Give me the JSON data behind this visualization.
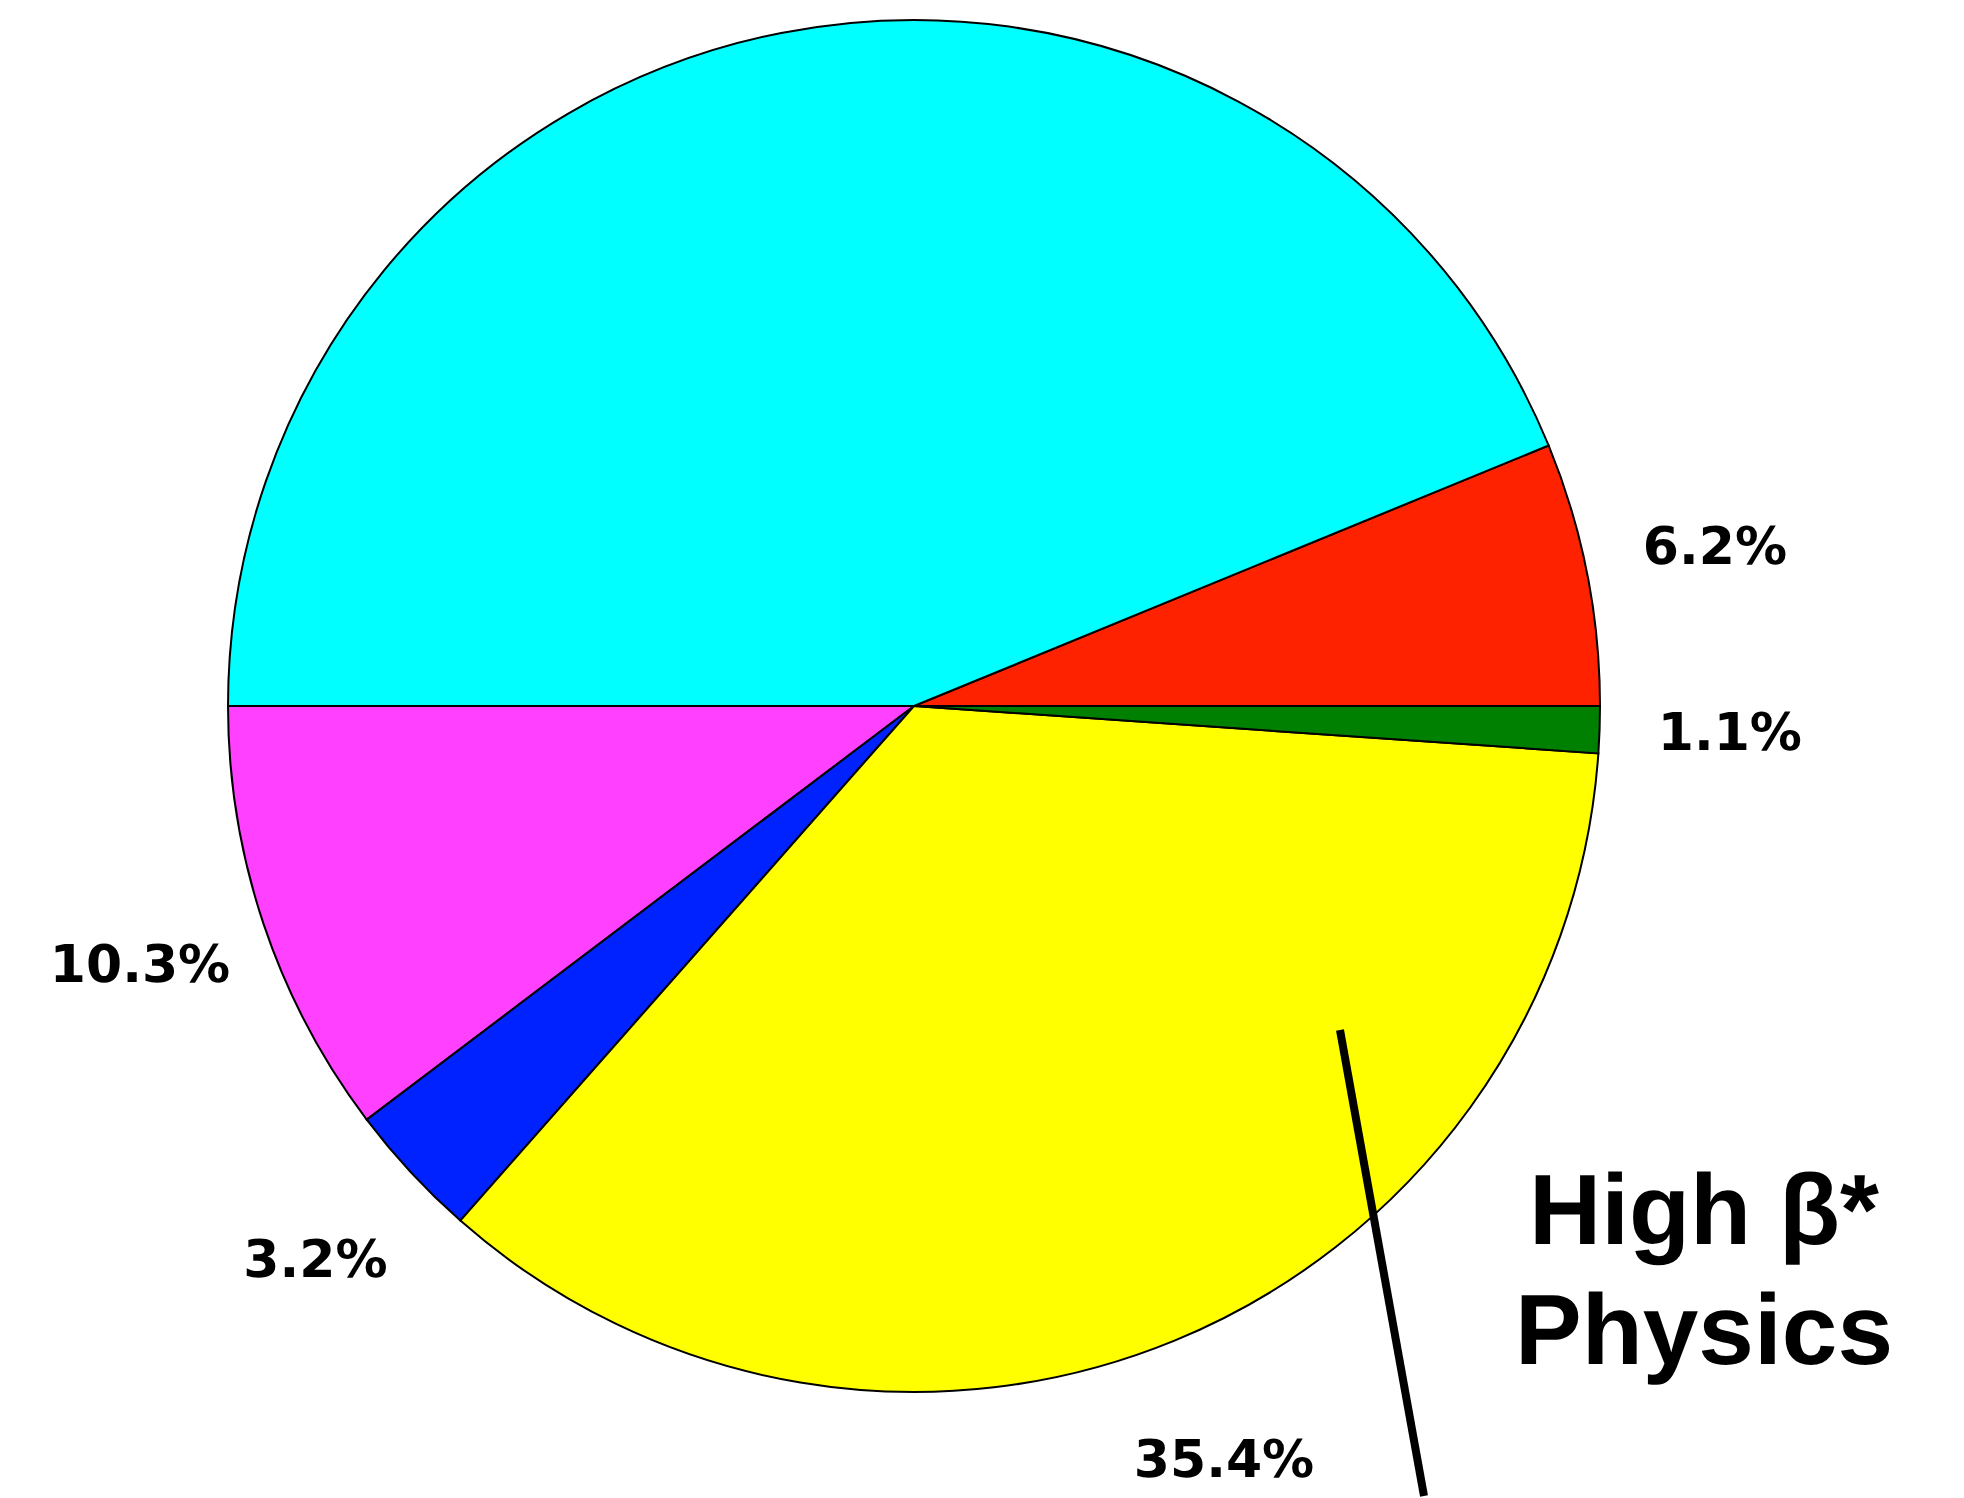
{
  "chart_data": {
    "type": "pie",
    "categories": [
      null,
      null,
      null,
      null,
      null,
      null
    ],
    "values": [
      6.2,
      43.8,
      10.3,
      3.2,
      35.4,
      1.1
    ],
    "colors": [
      "#ff2200",
      "#00ffff",
      "#ff40ff",
      "#0022ff",
      "#ffff00",
      "#008000"
    ],
    "value_labels": [
      "6.2%",
      null,
      "10.3%",
      "3.2%",
      "35.4%",
      "1.1%"
    ],
    "annotations": [
      "High β*\nPhysics"
    ],
    "legend": false
  }
}
